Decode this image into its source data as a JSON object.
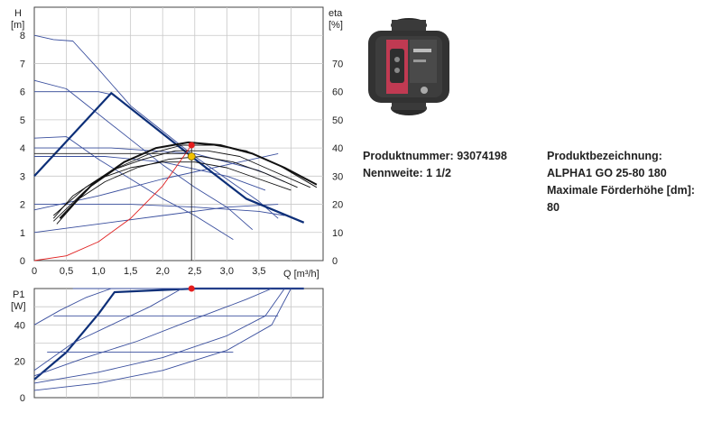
{
  "product": {
    "number_label": "Produktnummer:",
    "number_value": "93074198",
    "nominal_label": "Nennweite:",
    "nominal_value": "1 1/2",
    "designation_label": "Produktbezeichnung:",
    "designation_value": "ALPHA1 GO 25-80 180",
    "max_head_label": "Maximale Förderhöhe [dm]:",
    "max_head_value": "80"
  },
  "chart_data": [
    {
      "type": "line",
      "title": "",
      "ylabel": "H",
      "ylabel_unit": "[m]",
      "y2label": "eta",
      "y2label_unit": "[%]",
      "xlabel": "Q [m³/h]",
      "xlim": [
        0,
        4.5
      ],
      "ylim": [
        0,
        9
      ],
      "y2lim": [
        0,
        90
      ],
      "x_ticks": [
        "0",
        "0,5",
        "1,0",
        "1,5",
        "2,0",
        "2,5",
        "3,0",
        "3,5"
      ],
      "x_tick_values": [
        0,
        0.5,
        1.0,
        1.5,
        2.0,
        2.5,
        3.0,
        3.5
      ],
      "y_ticks": [
        0,
        1,
        2,
        3,
        4,
        5,
        6,
        7,
        8
      ],
      "y2_ticks": [
        0,
        10,
        20,
        30,
        40,
        50,
        60,
        70
      ],
      "grid": true,
      "series": [
        {
          "kind": "pump",
          "axis": "left",
          "color": "#3a4f9e",
          "points": [
            [
              0,
              8.0
            ],
            [
              0.3,
              7.85
            ],
            [
              0.6,
              7.8
            ],
            [
              1.0,
              6.8
            ],
            [
              1.5,
              5.5
            ],
            [
              2.0,
              4.6
            ],
            [
              2.5,
              3.7
            ],
            [
              3.0,
              2.9
            ],
            [
              3.5,
              2.1
            ],
            [
              3.8,
              1.5
            ]
          ]
        },
        {
          "kind": "pump",
          "axis": "left",
          "color": "#3a4f9e",
          "points": [
            [
              0,
              6.4
            ],
            [
              0.5,
              6.1
            ],
            [
              1.0,
              5.2
            ],
            [
              1.5,
              4.3
            ],
            [
              2.0,
              3.4
            ],
            [
              2.5,
              2.6
            ],
            [
              3.0,
              1.9
            ],
            [
              3.4,
              1.1
            ]
          ]
        },
        {
          "kind": "pump",
          "axis": "left",
          "color": "#3a4f9e",
          "points": [
            [
              0,
              4.35
            ],
            [
              0.5,
              4.4
            ],
            [
              1.0,
              3.6
            ],
            [
              1.5,
              2.9
            ],
            [
              2.0,
              2.2
            ],
            [
              2.5,
              1.6
            ],
            [
              3.1,
              0.75
            ]
          ]
        },
        {
          "kind": "const-pressure",
          "axis": "left",
          "color": "#3a4f9e",
          "points": [
            [
              0,
              6.0
            ],
            [
              1.0,
              6.0
            ],
            [
              1.2,
              5.9
            ]
          ]
        },
        {
          "kind": "const-pressure",
          "axis": "left",
          "color": "#3a4f9e",
          "points": [
            [
              0,
              4.0
            ],
            [
              1.2,
              4.0
            ],
            [
              2.5,
              3.8
            ],
            [
              3.5,
              3.2
            ],
            [
              3.9,
              2.8
            ]
          ]
        },
        {
          "kind": "const-pressure",
          "axis": "left",
          "color": "#3a4f9e",
          "points": [
            [
              0,
              3.7
            ],
            [
              1.1,
              3.7
            ],
            [
              2.0,
              3.5
            ],
            [
              3.0,
              3.0
            ],
            [
              3.6,
              2.5
            ]
          ]
        },
        {
          "kind": "const-pressure",
          "axis": "left",
          "color": "#3a4f9e",
          "points": [
            [
              0,
              2.0
            ],
            [
              1.5,
              2.0
            ],
            [
              2.5,
              1.9
            ],
            [
              3.5,
              1.75
            ],
            [
              3.9,
              1.6
            ]
          ]
        },
        {
          "kind": "prop-pressure",
          "axis": "left",
          "color": "#3a4f9e",
          "points": [
            [
              0,
              1.0
            ],
            [
              1.0,
              1.3
            ],
            [
              2.0,
              1.6
            ],
            [
              3.0,
              1.9
            ],
            [
              3.8,
              2.0
            ]
          ]
        },
        {
          "kind": "prop-pressure",
          "axis": "left",
          "color": "#3a4f9e",
          "points": [
            [
              0,
              1.8
            ],
            [
              1.0,
              2.3
            ],
            [
              2.0,
              2.9
            ],
            [
              3.0,
              3.4
            ],
            [
              3.8,
              3.8
            ]
          ]
        },
        {
          "kind": "autoadapt",
          "axis": "left",
          "color": "#0d2f78",
          "width": 2.2,
          "points": [
            [
              0,
              3.0
            ],
            [
              1.2,
              5.95
            ],
            [
              2.45,
              3.7
            ],
            [
              3.3,
              2.2
            ],
            [
              4.2,
              1.35
            ]
          ]
        },
        {
          "kind": "efficiency",
          "axis": "right",
          "color": "#111111",
          "points": [
            [
              0.3,
              15
            ],
            [
              0.6,
              23
            ],
            [
              1.0,
              29
            ],
            [
              1.5,
              33
            ],
            [
              2.0,
              35
            ],
            [
              2.5,
              35
            ],
            [
              3.0,
              33
            ],
            [
              3.5,
              29
            ],
            [
              4.0,
              25
            ]
          ]
        },
        {
          "kind": "efficiency",
          "axis": "right",
          "color": "#111111",
          "points": [
            [
              0.35,
              13
            ],
            [
              0.7,
              22
            ],
            [
              1.1,
              28
            ],
            [
              1.6,
              33
            ],
            [
              2.1,
              36
            ],
            [
              2.6,
              37
            ],
            [
              3.1,
              35
            ],
            [
              3.6,
              31
            ],
            [
              4.1,
              26
            ]
          ]
        },
        {
          "kind": "efficiency",
          "axis": "right",
          "color": "#111111",
          "points": [
            [
              0.3,
              16
            ],
            [
              0.8,
              26
            ],
            [
              1.2,
              32
            ],
            [
              1.7,
              36
            ],
            [
              2.2,
              39
            ],
            [
              2.7,
              39
            ],
            [
              3.2,
              37
            ],
            [
              3.7,
              32
            ],
            [
              4.3,
              26
            ]
          ]
        },
        {
          "kind": "efficiency",
          "axis": "right",
          "color": "#111111",
          "points": [
            [
              0.3,
              14
            ],
            [
              0.8,
              25
            ],
            [
              1.3,
              33
            ],
            [
              1.8,
              38
            ],
            [
              2.3,
              41
            ],
            [
              2.8,
              41
            ],
            [
              3.3,
              39
            ],
            [
              3.8,
              34
            ],
            [
              4.4,
              26
            ]
          ]
        },
        {
          "kind": "efficiency",
          "axis": "right",
          "color": "#111111",
          "width": 2.0,
          "points": [
            [
              0.4,
              15
            ],
            [
              0.9,
              27
            ],
            [
              1.4,
              35
            ],
            [
              1.9,
              40
            ],
            [
              2.4,
              42
            ],
            [
              2.9,
              41
            ],
            [
              3.4,
              38
            ],
            [
              3.9,
              33
            ],
            [
              4.4,
              27
            ]
          ]
        },
        {
          "kind": "system",
          "axis": "left",
          "color": "#e02020",
          "points": [
            [
              0,
              0
            ],
            [
              0.5,
              0.17
            ],
            [
              1.0,
              0.67
            ],
            [
              1.5,
              1.5
            ],
            [
              2.0,
              2.65
            ],
            [
              2.45,
              4.1
            ]
          ]
        }
      ],
      "operating_point": {
        "q": 2.45,
        "h": 4.1,
        "h_y_ref": 3.8,
        "eta": 37
      }
    },
    {
      "type": "line",
      "title": "",
      "ylabel": "P1",
      "ylabel_unit": "[W]",
      "xlim": [
        0,
        4.5
      ],
      "ylim": [
        0,
        60
      ],
      "y_ticks": [
        0,
        20,
        40
      ],
      "grid": true,
      "series": [
        {
          "kind": "autoadapt",
          "color": "#0d2f78",
          "width": 2.2,
          "points": [
            [
              0,
              10
            ],
            [
              0.5,
              25
            ],
            [
              1.0,
              46
            ],
            [
              1.25,
              58
            ],
            [
              2.5,
              60
            ],
            [
              4.2,
              60
            ]
          ]
        },
        {
          "kind": "curve",
          "color": "#3a4f9e",
          "points": [
            [
              0,
              40
            ],
            [
              0.4,
              48
            ],
            [
              0.8,
              55
            ],
            [
              1.2,
              60
            ],
            [
              4.2,
              60
            ]
          ]
        },
        {
          "kind": "curve",
          "color": "#3a4f9e",
          "points": [
            [
              0,
              15
            ],
            [
              0.6,
              30
            ],
            [
              1.2,
              40
            ],
            [
              1.8,
              50
            ],
            [
              2.3,
              60
            ],
            [
              4.2,
              60
            ]
          ]
        },
        {
          "kind": "curve",
          "color": "#3a4f9e",
          "points": [
            [
              0,
              12
            ],
            [
              0.8,
              22
            ],
            [
              1.6,
              31
            ],
            [
              2.4,
              42
            ],
            [
              3.3,
              54
            ],
            [
              3.7,
              60
            ]
          ]
        },
        {
          "kind": "curve",
          "color": "#3a4f9e",
          "points": [
            [
              0,
              8
            ],
            [
              1.0,
              14
            ],
            [
              2.0,
              22
            ],
            [
              3.0,
              34
            ],
            [
              3.6,
              45
            ],
            [
              3.9,
              60
            ]
          ]
        },
        {
          "kind": "curve",
          "color": "#3a4f9e",
          "points": [
            [
              0,
              4
            ],
            [
              1.0,
              8
            ],
            [
              2.0,
              15
            ],
            [
              3.0,
              26
            ],
            [
              3.7,
              40
            ],
            [
              4.0,
              60
            ]
          ]
        },
        {
          "kind": "const",
          "color": "#3a4f9e",
          "points": [
            [
              0.3,
              45
            ],
            [
              3.8,
              45
            ]
          ]
        },
        {
          "kind": "const",
          "color": "#3a4f9e",
          "points": [
            [
              0.2,
              25
            ],
            [
              3.1,
              25
            ]
          ]
        },
        {
          "kind": "const",
          "color": "#3a4f9e",
          "points": [
            [
              0.6,
              60
            ],
            [
              4.2,
              60
            ]
          ]
        }
      ],
      "operating_point": {
        "q": 2.45,
        "p1": 60
      }
    }
  ]
}
